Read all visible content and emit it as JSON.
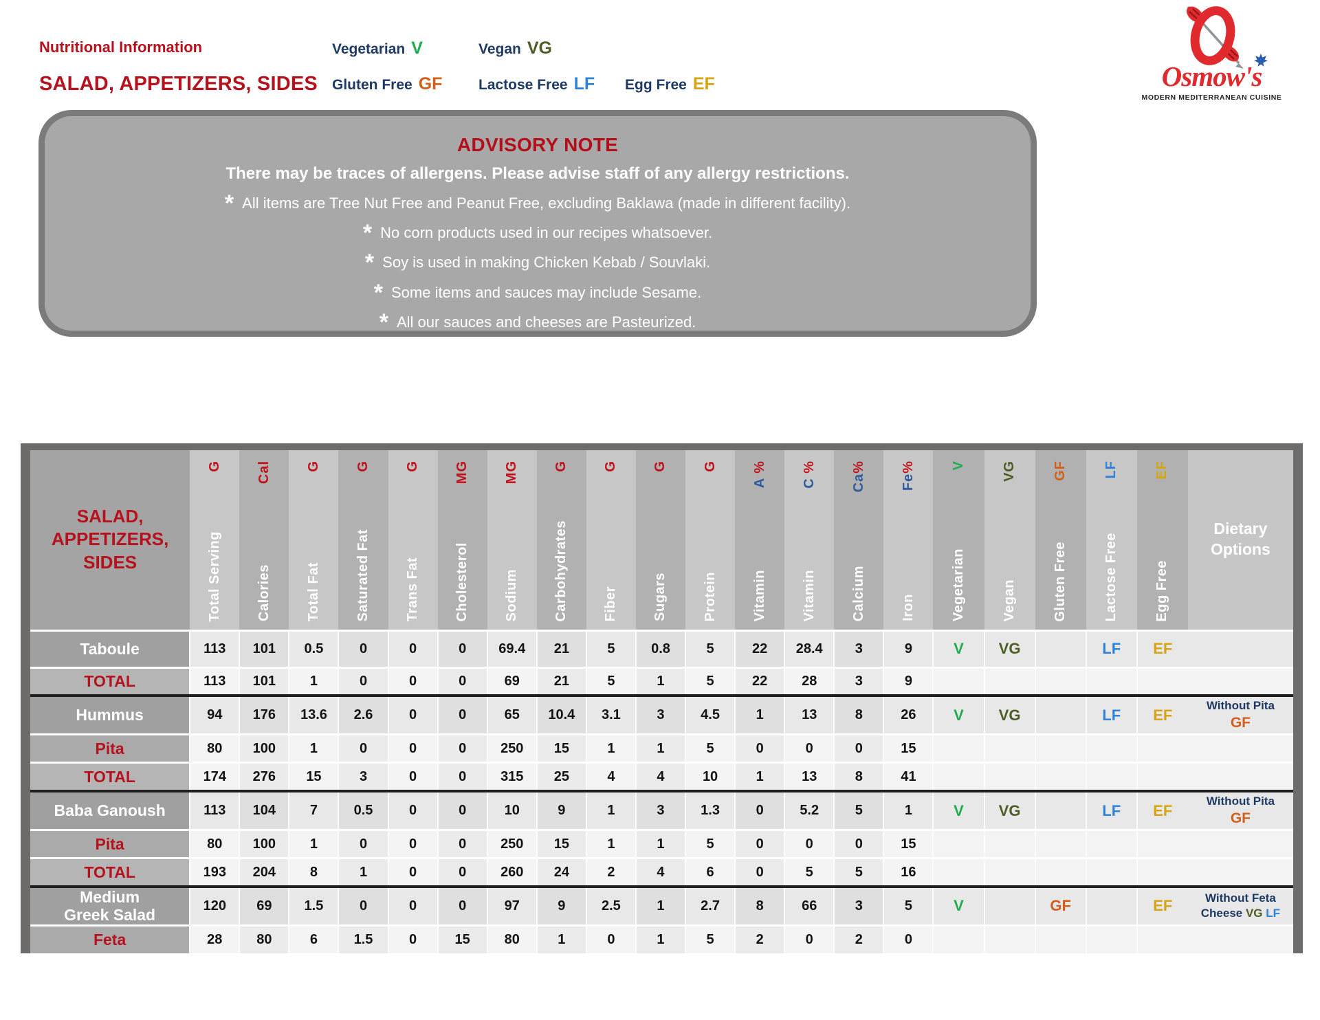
{
  "header": {
    "subtitle": "Nutritional Information",
    "title": "SALAD, APPETIZERS, SIDES",
    "legend": [
      {
        "label": "Vegetarian",
        "code": "V"
      },
      {
        "label": "Vegan",
        "code": "VG"
      },
      {
        "label": "Gluten Free",
        "code": "GF"
      },
      {
        "label": "Lactose Free",
        "code": "LF"
      },
      {
        "label": "Egg Free",
        "code": "EF"
      }
    ],
    "legend_colors": {
      "V": "#1fae4e",
      "VG": "#4c5d25",
      "GF": "#d2601c",
      "LF": "#2e83d9",
      "EF": "#d7a413"
    },
    "logo": {
      "brand": "Osmow's",
      "tagline": "MODERN MEDITERRANEAN CUISINE",
      "brand_color": "#e12a2e"
    }
  },
  "advisory": {
    "title": "ADVISORY NOTE",
    "intro": "There may be traces of allergens. Please advise staff of any allergy restrictions.",
    "notes": [
      "All items are Tree Nut Free and Peanut Free, excluding Baklawa (made in different facility).",
      "No corn products used in our recipes whatsoever.",
      "Soy is used in making Chicken Kebab / Souvlaki.",
      "Some items and sauces may include Sesame.",
      "All our sauces and cheeses are Pasteurized."
    ]
  },
  "table": {
    "corner_title": "SALAD,\nAPPETIZERS,\nSIDES",
    "dietary_options_header": "Dietary Options",
    "columns": [
      {
        "label": "Total Serving",
        "unit_parts": [
          {
            "t": "G",
            "c": "red"
          }
        ]
      },
      {
        "label": "Calories",
        "unit_parts": [
          {
            "t": "Cal",
            "c": "red"
          }
        ]
      },
      {
        "label": "Total Fat",
        "unit_parts": [
          {
            "t": "G",
            "c": "red"
          }
        ]
      },
      {
        "label": "Saturated Fat",
        "unit_parts": [
          {
            "t": "G",
            "c": "red"
          }
        ]
      },
      {
        "label": "Trans Fat",
        "unit_parts": [
          {
            "t": "G",
            "c": "red"
          }
        ]
      },
      {
        "label": "Cholesterol",
        "unit_parts": [
          {
            "t": "MG",
            "c": "red"
          }
        ]
      },
      {
        "label": "Sodium",
        "unit_parts": [
          {
            "t": "MG",
            "c": "red"
          }
        ]
      },
      {
        "label": "Carbohydrates",
        "unit_parts": [
          {
            "t": "G",
            "c": "red"
          }
        ]
      },
      {
        "label": "Fiber",
        "unit_parts": [
          {
            "t": "G",
            "c": "red"
          }
        ]
      },
      {
        "label": "Sugars",
        "unit_parts": [
          {
            "t": "G",
            "c": "red"
          }
        ]
      },
      {
        "label": "Protein",
        "unit_parts": [
          {
            "t": "G",
            "c": "red"
          }
        ]
      },
      {
        "label": "Vitamin",
        "unit_parts": [
          {
            "t": "A ",
            "c": "blue"
          },
          {
            "t": "%",
            "c": "red"
          }
        ]
      },
      {
        "label": "Vitamin",
        "unit_parts": [
          {
            "t": "C ",
            "c": "blue"
          },
          {
            "t": "%",
            "c": "red"
          }
        ]
      },
      {
        "label": "Calcium",
        "unit_parts": [
          {
            "t": "Ca",
            "c": "blue"
          },
          {
            "t": "%",
            "c": "red"
          }
        ]
      },
      {
        "label": "Iron",
        "unit_parts": [
          {
            "t": "Fe",
            "c": "blue"
          },
          {
            "t": "%",
            "c": "red"
          }
        ]
      },
      {
        "label": "Vegetarian",
        "unit_parts": [
          {
            "t": "V",
            "c": "v"
          }
        ]
      },
      {
        "label": "Vegan",
        "unit_parts": [
          {
            "t": "VG",
            "c": "vg"
          }
        ]
      },
      {
        "label": "Gluten Free",
        "unit_parts": [
          {
            "t": "GF",
            "c": "gf"
          }
        ]
      },
      {
        "label": "Lactose Free",
        "unit_parts": [
          {
            "t": "LF",
            "c": "lf"
          }
        ]
      },
      {
        "label": "Egg Free",
        "unit_parts": [
          {
            "t": "EF",
            "c": "ef"
          }
        ]
      }
    ],
    "rows": [
      {
        "name": "Taboule",
        "style": "item",
        "sep_after": false,
        "values": [
          "113",
          "101",
          "0.5",
          "0",
          "0",
          "0",
          "69.4",
          "21",
          "5",
          "0.8",
          "5",
          "22",
          "28.4",
          "3",
          "9"
        ],
        "flags": [
          "V",
          "VG",
          "",
          "LF",
          "EF"
        ],
        "dietary": []
      },
      {
        "name": "TOTAL",
        "style": "total",
        "sep_after": true,
        "values": [
          "113",
          "101",
          "1",
          "0",
          "0",
          "0",
          "69",
          "21",
          "5",
          "1",
          "5",
          "22",
          "28",
          "3",
          "9"
        ],
        "flags": [
          "",
          "",
          "",
          "",
          ""
        ],
        "dietary": []
      },
      {
        "name": "Hummus",
        "style": "item",
        "sep_after": false,
        "values": [
          "94",
          "176",
          "13.6",
          "2.6",
          "0",
          "0",
          "65",
          "10.4",
          "3.1",
          "3",
          "4.5",
          "1",
          "13",
          "8",
          "26"
        ],
        "flags": [
          "V",
          "VG",
          "",
          "LF",
          "EF"
        ],
        "dietary": [
          [
            {
              "t": "Without Pita",
              "c": "navy"
            }
          ],
          [
            {
              "t": "GF",
              "c": "gf"
            }
          ]
        ]
      },
      {
        "name": "Pita",
        "style": "sub",
        "sep_after": false,
        "values": [
          "80",
          "100",
          "1",
          "0",
          "0",
          "0",
          "250",
          "15",
          "1",
          "1",
          "5",
          "0",
          "0",
          "0",
          "15"
        ],
        "flags": [
          "",
          "",
          "",
          "",
          ""
        ],
        "dietary": []
      },
      {
        "name": "TOTAL",
        "style": "total",
        "sep_after": true,
        "values": [
          "174",
          "276",
          "15",
          "3",
          "0",
          "0",
          "315",
          "25",
          "4",
          "4",
          "10",
          "1",
          "13",
          "8",
          "41"
        ],
        "flags": [
          "",
          "",
          "",
          "",
          ""
        ],
        "dietary": []
      },
      {
        "name": "Baba Ganoush",
        "style": "item",
        "sep_after": false,
        "values": [
          "113",
          "104",
          "7",
          "0.5",
          "0",
          "0",
          "10",
          "9",
          "1",
          "3",
          "1.3",
          "0",
          "5.2",
          "5",
          "1"
        ],
        "flags": [
          "V",
          "VG",
          "",
          "LF",
          "EF"
        ],
        "dietary": [
          [
            {
              "t": "Without Pita",
              "c": "navy"
            }
          ],
          [
            {
              "t": "GF",
              "c": "gf"
            }
          ]
        ]
      },
      {
        "name": "Pita",
        "style": "sub",
        "sep_after": false,
        "values": [
          "80",
          "100",
          "1",
          "0",
          "0",
          "0",
          "250",
          "15",
          "1",
          "1",
          "5",
          "0",
          "0",
          "0",
          "15"
        ],
        "flags": [
          "",
          "",
          "",
          "",
          ""
        ],
        "dietary": []
      },
      {
        "name": "TOTAL",
        "style": "total",
        "sep_after": true,
        "values": [
          "193",
          "204",
          "8",
          "1",
          "0",
          "0",
          "260",
          "24",
          "2",
          "4",
          "6",
          "0",
          "5",
          "5",
          "16"
        ],
        "flags": [
          "",
          "",
          "",
          "",
          ""
        ],
        "dietary": []
      },
      {
        "name": "Medium\nGreek Salad",
        "style": "item",
        "sep_after": false,
        "values": [
          "120",
          "69",
          "1.5",
          "0",
          "0",
          "0",
          "97",
          "9",
          "2.5",
          "1",
          "2.7",
          "8",
          "66",
          "3",
          "5"
        ],
        "flags": [
          "V",
          "",
          "GF",
          "",
          "EF"
        ],
        "dietary": [
          [
            {
              "t": "Without Feta",
              "c": "navy"
            }
          ],
          [
            {
              "t": "Cheese ",
              "c": "navy"
            },
            {
              "t": "VG",
              "c": "vg"
            },
            {
              "t": " ",
              "c": "navy"
            },
            {
              "t": "LF",
              "c": "lf"
            }
          ]
        ]
      },
      {
        "name": "Feta",
        "style": "sub",
        "sep_after": false,
        "values": [
          "28",
          "80",
          "6",
          "1.5",
          "0",
          "15",
          "80",
          "1",
          "0",
          "1",
          "5",
          "2",
          "0",
          "2",
          "0"
        ],
        "flags": [
          "",
          "",
          "",
          "",
          ""
        ],
        "dietary": []
      }
    ]
  }
}
